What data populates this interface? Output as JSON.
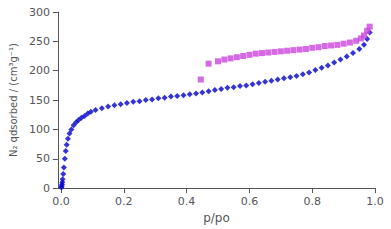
{
  "chart_data": {
    "type": "scatter",
    "xlabel": "p/po",
    "ylabel": "N₂ qdsorbed / (cm³g⁻¹)",
    "xlim": [
      -0.01,
      1.0
    ],
    "ylim": [
      0,
      300
    ],
    "xticks": [
      {
        "value": 0,
        "label": "0.0"
      },
      0.2,
      0.4,
      0.6,
      0.8,
      {
        "value": 1.0,
        "label": "1.0"
      }
    ],
    "yticks": [
      0,
      50,
      100,
      150,
      200,
      250,
      300
    ],
    "grid": false,
    "series": [
      {
        "color": "#0000CC",
        "marker": "diamond",
        "x": [
          0.001,
          0.002,
          0.003,
          0.004,
          0.005,
          0.007,
          0.009,
          0.012,
          0.015,
          0.018,
          0.022,
          0.027,
          0.033,
          0.04,
          0.048,
          0.056,
          0.065,
          0.075,
          0.085,
          0.095,
          0.11,
          0.13,
          0.15,
          0.17,
          0.19,
          0.21,
          0.23,
          0.25,
          0.27,
          0.29,
          0.31,
          0.33,
          0.35,
          0.37,
          0.39,
          0.41,
          0.43,
          0.45,
          0.47,
          0.49,
          0.51,
          0.53,
          0.55,
          0.57,
          0.59,
          0.61,
          0.63,
          0.65,
          0.67,
          0.69,
          0.71,
          0.73,
          0.75,
          0.77,
          0.79,
          0.81,
          0.83,
          0.85,
          0.87,
          0.89,
          0.91,
          0.93,
          0.95,
          0.965,
          0.975,
          0.983
        ],
        "values": [
          1,
          3,
          6,
          10,
          15,
          24,
          35,
          50,
          63,
          74,
          84,
          93,
          100,
          107,
          112,
          116,
          120,
          123,
          127,
          130,
          133,
          136,
          139,
          141,
          143,
          145,
          147,
          148,
          150,
          151,
          153,
          154,
          156,
          157,
          158,
          160,
          161,
          163,
          165,
          167,
          169,
          171,
          172,
          174,
          175,
          177,
          179,
          181,
          183,
          185,
          187,
          189,
          191,
          194,
          197,
          201,
          205,
          209,
          214,
          219,
          224,
          230,
          237,
          244,
          254,
          265
        ]
      },
      {
        "color": "#CC44DD",
        "marker": "square",
        "x": [
          0.445,
          0.47,
          0.5,
          0.52,
          0.54,
          0.56,
          0.58,
          0.6,
          0.62,
          0.64,
          0.66,
          0.68,
          0.7,
          0.72,
          0.74,
          0.76,
          0.78,
          0.8,
          0.82,
          0.84,
          0.86,
          0.88,
          0.9,
          0.92,
          0.94,
          0.955,
          0.965,
          0.975,
          0.983
        ],
        "values": [
          185,
          212,
          216,
          219,
          221,
          223,
          225,
          227,
          229,
          230,
          231,
          232,
          233,
          234,
          235,
          236,
          237,
          239,
          240,
          242,
          243,
          244,
          246,
          248,
          251,
          255,
          260,
          268,
          275
        ]
      }
    ]
  }
}
